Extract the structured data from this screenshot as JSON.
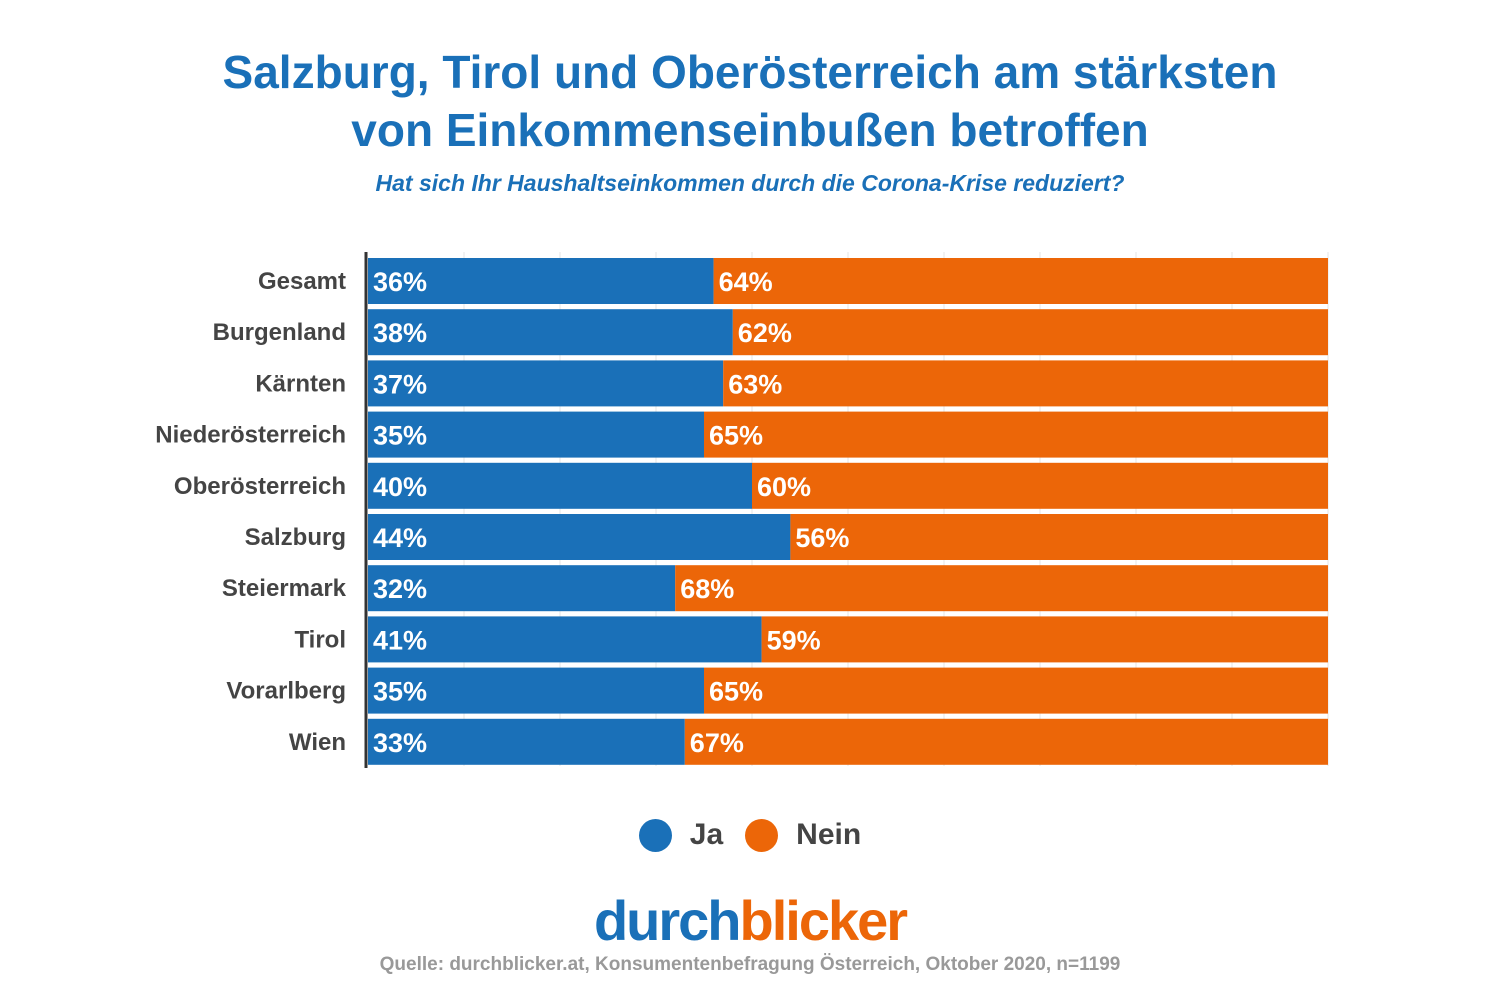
{
  "title_line1": "Salzburg, Tirol und Oberösterreich am stärksten",
  "title_line2": "von Einkommenseinbußen betroffen",
  "subtitle": "Hat sich Ihr Haushaltseinkommen durch die Corona-Krise reduziert?",
  "logo": {
    "part1": "durch",
    "part2": "blicker"
  },
  "source": "Quelle: durchblicker.at, Konsumentenbefragung Österreich, Oktober 2020, n=1199",
  "colors": {
    "ja": "#1a70b8",
    "nein": "#ec6608"
  },
  "chart_data": {
    "type": "bar",
    "orientation": "horizontal",
    "stacked": true,
    "xlim": [
      0,
      100
    ],
    "grid": true,
    "legend_position": "bottom",
    "categories": [
      "Gesamt",
      "Burgenland",
      "Kärnten",
      "Niederösterreich",
      "Oberösterreich",
      "Salzburg",
      "Steiermark",
      "Tirol",
      "Vorarlberg",
      "Wien"
    ],
    "series": [
      {
        "name": "Ja",
        "values": [
          36,
          38,
          37,
          35,
          40,
          44,
          32,
          41,
          35,
          33
        ]
      },
      {
        "name": "Nein",
        "values": [
          64,
          62,
          63,
          65,
          60,
          56,
          68,
          59,
          65,
          67
        ]
      }
    ]
  }
}
